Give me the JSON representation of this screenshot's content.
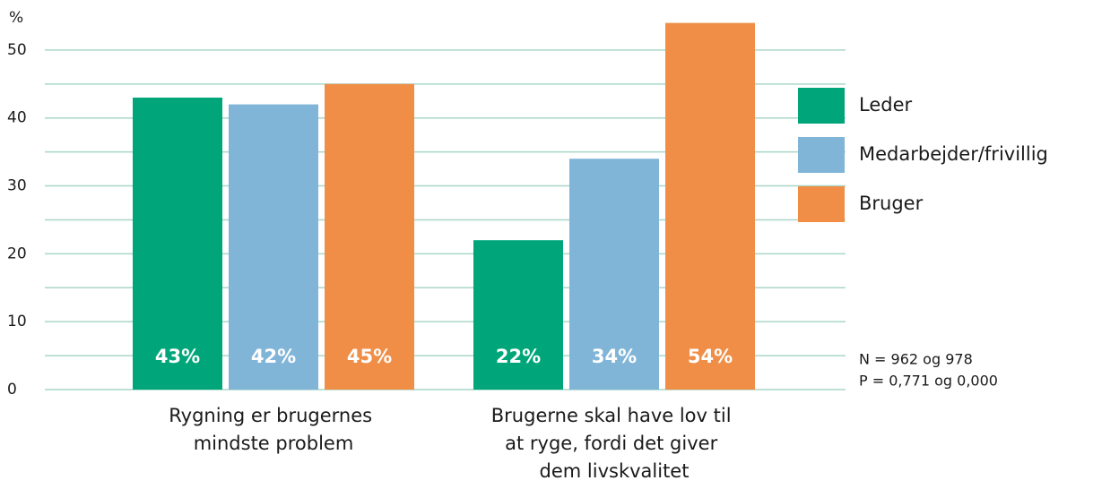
{
  "chart_data": {
    "type": "bar",
    "y_label": "%",
    "categories": [
      "Rygning er brugernes mindste problem",
      "Brugerne skal have lov til at ryge, fordi det giver dem livskvalitet"
    ],
    "series": [
      {
        "name": "Leder",
        "color": "#00a67a",
        "values": [
          43,
          22
        ],
        "value_labels": [
          "43%",
          "22%"
        ]
      },
      {
        "name": "Medarbejder/frivillig",
        "color": "#80b5d8",
        "values": [
          42,
          34
        ],
        "value_labels": [
          "42%",
          "34%"
        ]
      },
      {
        "name": "Bruger",
        "color": "#f08e47",
        "values": [
          45,
          54
        ],
        "value_labels": [
          "45%",
          "54%"
        ]
      }
    ],
    "ylim": [
      0,
      55
    ],
    "yticks": [
      0,
      10,
      20,
      30,
      40,
      50
    ],
    "minor_yticks": [
      5,
      15,
      25,
      35,
      45
    ],
    "grid": true,
    "legend": "right",
    "notes": [
      "N = 962 og 978",
      "P = 0,771 og 0,000"
    ]
  }
}
